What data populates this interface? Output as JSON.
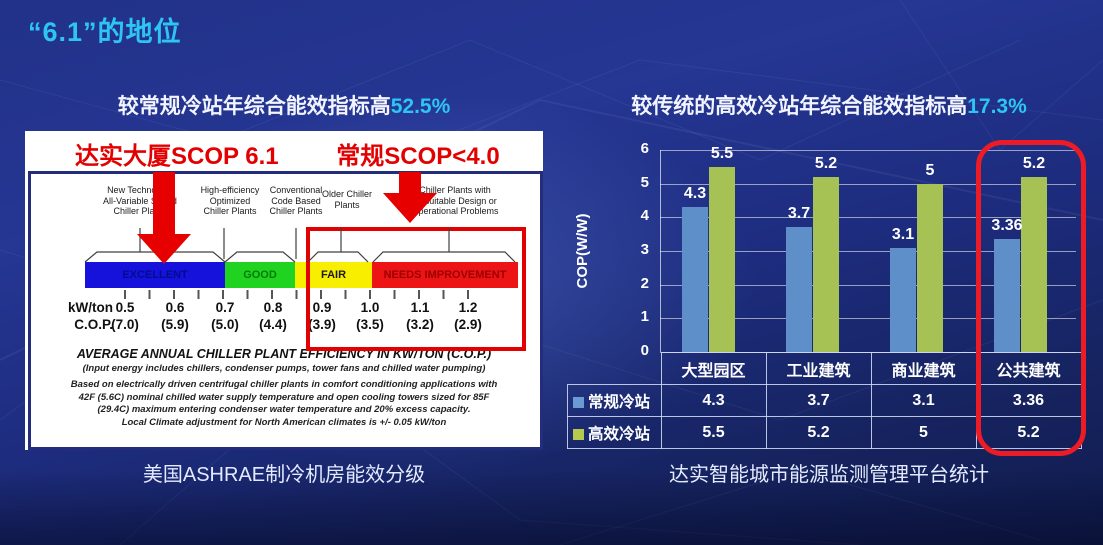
{
  "slide": {
    "title": "“6.1”的地位",
    "left": {
      "subtitle_prefix": "较常规冷站年综合能效指标高",
      "subtitle_highlight": "52.5%",
      "caption": "美国ASHRAE制冷机房能效分级",
      "panel": {
        "title_left": "达实大厦SCOP 6.1",
        "title_right": "常规SCOP<4.0",
        "categories": [
          "New Technology\nAll-Variable Speed\nChiller Plants",
          "High-efficiency\nOptimized\nChiller Plants",
          "Conventional\nCode Based\nChiller Plants",
          "Older Chiller\nPlants",
          "Chiller Plants with\nUnsuitable Design or\nOperational Problems"
        ],
        "bands": [
          {
            "label": "EXCELLENT",
            "color": "#1612dc"
          },
          {
            "label": "GOOD",
            "color": "#21d321"
          },
          {
            "label": "FAIR",
            "color": "#f8ef00"
          },
          {
            "label": "NEEDS IMPROVEMENT",
            "color": "#ec1414"
          }
        ],
        "scale": {
          "kwton_label": "kW/ton",
          "kwton": [
            "0.5",
            "0.6",
            "0.7",
            "0.8",
            "0.9",
            "1.0",
            "1.1",
            "1.2"
          ],
          "cop_label": "C.O.P.",
          "cop": [
            "(7.0)",
            "(5.9)",
            "(5.0)",
            "(4.4)",
            "(3.9)",
            "(3.5)",
            "(3.2)",
            "(2.9)"
          ]
        },
        "footer": {
          "title": "AVERAGE ANNUAL CHILLER PLANT EFFICIENCY IN KW/TON (C.O.P.)",
          "subtitle": "(Input energy includes chillers, condenser pumps, tower fans and chilled water pumping)",
          "body": "Based on electrically driven centrifugal chiller plants in comfort conditioning applications with\n42F (5.6C) nominal chilled water supply temperature and open cooling towers sized for 85F\n(29.4C) maximum entering condenser water temperature and 20% excess capacity.\nLocal Climate adjustment for North American climates is +/- 0.05 kW/ton"
        }
      }
    },
    "right": {
      "subtitle_prefix": "较传统的高效冷站年综合能效指标高",
      "subtitle_highlight": "17.3%",
      "caption": "达实智能城市能源监测管理平台统计"
    }
  },
  "chart_data": {
    "type": "bar",
    "title": "",
    "xlabel": "",
    "ylabel": "COP(W/W)",
    "ylim": [
      0,
      6
    ],
    "yticks": [
      0,
      1,
      2,
      3,
      4,
      5,
      6
    ],
    "grid": true,
    "legend_position": "table-left",
    "categories": [
      "大型园区",
      "工业建筑",
      "商业建筑",
      "公共建筑"
    ],
    "series": [
      {
        "name": "常规冷站",
        "color": "#5f8fc9",
        "values": [
          4.3,
          3.7,
          3.1,
          3.36
        ],
        "labels": [
          "4.3",
          "3.7",
          "3.1",
          "3.36"
        ]
      },
      {
        "name": "高效冷站",
        "color": "#a6c254",
        "values": [
          5.5,
          5.2,
          5,
          5.2
        ],
        "labels": [
          "5.5",
          "5.2",
          "5",
          "5.2"
        ]
      }
    ],
    "highlight_category": "公共建筑"
  },
  "colors": {
    "accent_cyan": "#2cc5f4",
    "highlight_red": "#ec1b26",
    "series_blue": "#5f8fc9",
    "series_green": "#a6c254",
    "band_excellent": "#1612dc",
    "band_good": "#21d321",
    "band_fair": "#f8ef00",
    "band_needs_improvement": "#ec1414"
  }
}
